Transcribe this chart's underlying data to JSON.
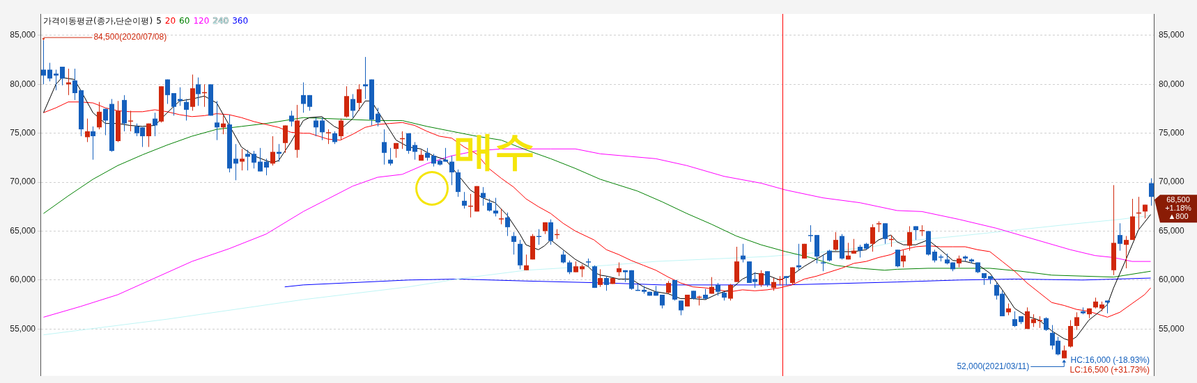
{
  "chart_data": {
    "type": "candlestick",
    "legend_title": "가격이동평균(종가,단순이평)",
    "grid": "y",
    "tick_labels": "y",
    "marker": "none",
    "categories": [
      null,
      null,
      null,
      null,
      null,
      null,
      null,
      null,
      null,
      null,
      null,
      null,
      null,
      null,
      null,
      null,
      null,
      null,
      null,
      null,
      null,
      null,
      null,
      null,
      null,
      null,
      null,
      null,
      null,
      null,
      null,
      null,
      null,
      null,
      null,
      null,
      null,
      null,
      null,
      null,
      null,
      null,
      null,
      null,
      null,
      null,
      null,
      null,
      null,
      null,
      null,
      null,
      null,
      null,
      null,
      null,
      null,
      null,
      null,
      null,
      null,
      null,
      null,
      null,
      null,
      null,
      null,
      null,
      null,
      null,
      null,
      null,
      null,
      null,
      null,
      null,
      null,
      null,
      null,
      null,
      null,
      null,
      null,
      null,
      null,
      null,
      null,
      null,
      null,
      null,
      null,
      null,
      null,
      null,
      null,
      null,
      null,
      null,
      null,
      null,
      null,
      null,
      null,
      null,
      null,
      null,
      null,
      null,
      null,
      null,
      null,
      null,
      null,
      null,
      null,
      null,
      null,
      null,
      null,
      null,
      null,
      null,
      null,
      null,
      null,
      null,
      null,
      null,
      null,
      null,
      null,
      null,
      null,
      null,
      null,
      null,
      null,
      null,
      null,
      null,
      null,
      null,
      null,
      null,
      null,
      null,
      null,
      null,
      null,
      null,
      null,
      null,
      null,
      null,
      null,
      null,
      null,
      null,
      null,
      null,
      null,
      null,
      null,
      null,
      null,
      null,
      null,
      null,
      null,
      null,
      null,
      null,
      null,
      null,
      null,
      null,
      null,
      null,
      null,
      null
    ],
    "ylim": [
      50200,
      87200
    ],
    "yticks": [
      {
        "value": 55000,
        "label": "55,000"
      },
      {
        "value": 60000,
        "label": "60,000"
      },
      {
        "value": 65000,
        "label": "65,000"
      },
      {
        "value": 70000,
        "label": "70,000"
      },
      {
        "value": 75000,
        "label": "75,000"
      },
      {
        "value": 80000,
        "label": "80,000"
      },
      {
        "value": 85000,
        "label": "85,000"
      }
    ],
    "y2lim": [
      50200,
      87200
    ],
    "y2ticks": [
      {
        "value": 55000,
        "label": "55,000"
      },
      {
        "value": 60000,
        "label": "60,000"
      },
      {
        "value": 65000,
        "label": "65,000"
      },
      {
        "value": 70000,
        "label": "70,000"
      },
      {
        "value": 75000,
        "label": "75,000"
      },
      {
        "value": 80000,
        "label": "80,000"
      },
      {
        "value": 85000,
        "label": "85,000"
      }
    ],
    "annotations": [
      "84,500(2020/07/08)",
      "52,000(2021/03/11)",
      "HC:16,000 (-18.93%)",
      "LC:16,500 (+31.73%)",
      "68,500",
      "+1.18%",
      "▲800",
      "매수"
    ],
    "colors": [
      "#1560bd",
      "#1560bd",
      "#1560bd",
      "#1560bd",
      "#d0280c",
      "#1560bd",
      "#1560bd",
      "#d0280c",
      "#1560bd",
      "#d0280c",
      "#1560bd",
      "#1560bd",
      "#d0280c",
      "#1560bd",
      "#d0280c",
      "#1560bd",
      "#1560bd",
      "#d0280c",
      "#1560bd",
      "#d0280c",
      "#1560bd",
      "#1560bd",
      "#1560bd",
      "#1560bd",
      "#d0280c",
      "#1560bd",
      "#d0280c",
      "#1560bd",
      "#1560bd",
      "#d0280c",
      "#1560bd",
      "#1560bd",
      "#d0280c",
      "#1560bd",
      "#1560bd",
      "#1560bd",
      "#1560bd",
      "#d0280c",
      "#1560bd",
      "#d0280c",
      "#1560bd",
      "#d0280c",
      "#1560bd",
      "#1560bd",
      "#1560bd",
      "#1560bd",
      "#d0280c",
      "#1560bd",
      "#d0280c",
      "#d0280c",
      "#1560bd",
      "#d0280c",
      "#1560bd",
      "#1560bd",
      "#1560bd",
      "#1560bd",
      "#1560bd",
      "#d0280c",
      "#d0280c",
      "#1560bd",
      "#1560bd",
      "#d0280c",
      "#1560bd",
      "#1560bd",
      "#1560bd",
      "#1560bd",
      "#1560bd",
      "#1560bd",
      "#1560bd",
      "#d0280c",
      "#d0280c",
      "#1560bd",
      "#1560bd",
      "#1560bd",
      "#d0280c",
      "#1560bd",
      "#1560bd",
      "#1560bd",
      "#d0280c",
      "#d0280c",
      "#1560bd",
      "#d0280c",
      "#1560bd",
      "#d0280c",
      "#1560bd",
      "#1560bd",
      "#d0280c",
      "#d0280c",
      "#1560bd",
      "#1560bd",
      "#d0280c",
      "#1560bd",
      "#d0280c",
      "#d0280c",
      "#1560bd",
      "#1560bd",
      "#1560bd",
      "#1560bd",
      "#1560bd",
      "#1560bd",
      "#1560bd",
      "#d0280c",
      "#1560bd",
      "#1560bd",
      "#d0280c",
      "#1560bd",
      "#d0280c",
      "#1560bd",
      "#d0280c",
      "#1560bd",
      "#1560bd",
      "#d0280c",
      "#d0280c",
      "#1560bd",
      "#1560bd",
      "#1560bd",
      "#d0280c",
      "#1560bd",
      "#d0280c",
      "#d0280c",
      "#1560bd",
      "#d0280c",
      "#1560bd",
      "#d0280c",
      "#1560bd",
      "#1560bd",
      "#1560bd",
      "#1560bd",
      "#d0280c",
      "#1560bd",
      "#d0280c",
      "#d0280c",
      "#1560bd",
      "#1560bd",
      "#d0280c",
      "#d0280c",
      "#1560bd",
      "#d0280c",
      "#1560bd",
      "#d0280c",
      "#d0280c",
      "#1560bd",
      "#d0280c",
      "#1560bd",
      "#1560bd",
      "#1560bd",
      "#1560bd",
      "#1560bd",
      "#d0280c",
      "#1560bd",
      "#1560bd",
      "#1560bd",
      "#1560bd",
      "#1560bd",
      "#1560bd",
      "#1560bd",
      "#d0280c",
      "#1560bd",
      "#1560bd",
      "#d0280c",
      "#d0280c",
      "#d0280c",
      "#1560bd",
      "#1560bd",
      "#1560bd",
      "#d0280c",
      "#d0280c",
      "#d0280c",
      "#1560bd",
      "#d0280c",
      "#d0280c",
      "#d0280c",
      "#1560bd",
      "#d0280c",
      "#1560bd",
      "#d0280c",
      "#d0280c",
      "#d0280c",
      "#d0280c",
      "#1560bd"
    ],
    "ohlc": [
      [
        81500,
        84500,
        80000,
        80900
      ],
      [
        81500,
        82200,
        80300,
        80600
      ],
      [
        81100,
        81500,
        79400,
        80900
      ],
      [
        81800,
        81800,
        79900,
        80600
      ],
      [
        80000,
        81600,
        78900,
        80200
      ],
      [
        80400,
        81600,
        78400,
        79100
      ],
      [
        79400,
        79400,
        74700,
        75400
      ],
      [
        74600,
        76500,
        74100,
        75200
      ],
      [
        75200,
        75700,
        72300,
        74700
      ],
      [
        75600,
        78200,
        75400,
        77200
      ],
      [
        77500,
        77500,
        74800,
        76300
      ],
      [
        78000,
        78500,
        73100,
        73200
      ],
      [
        74200,
        78300,
        74100,
        77300
      ],
      [
        78400,
        78900,
        75200,
        76000
      ],
      [
        76200,
        77300,
        75200,
        76300
      ],
      [
        75700,
        76000,
        74700,
        75000
      ],
      [
        75600,
        75600,
        73600,
        74700
      ],
      [
        74700,
        76000,
        73600,
        76000
      ],
      [
        76500,
        77100,
        74700,
        75800
      ],
      [
        76200,
        79800,
        76100,
        79800
      ],
      [
        80500,
        80500,
        78000,
        78900
      ],
      [
        79100,
        79100,
        76800,
        77700
      ],
      [
        78500,
        79700,
        77800,
        78300
      ],
      [
        78200,
        78500,
        76300,
        77400
      ],
      [
        77700,
        81000,
        77300,
        79600
      ],
      [
        80000,
        80700,
        77800,
        79000
      ],
      [
        79100,
        80000,
        77700,
        79200
      ],
      [
        80000,
        80000,
        76800,
        76800
      ],
      [
        76100,
        78300,
        74300,
        75600
      ],
      [
        75600,
        76800,
        74900,
        76000
      ],
      [
        75900,
        76900,
        71000,
        71400
      ],
      [
        72400,
        73900,
        70200,
        71900
      ],
      [
        72100,
        73400,
        71200,
        72400
      ],
      [
        72900,
        73300,
        71200,
        72600
      ],
      [
        72900,
        73200,
        71400,
        72000
      ],
      [
        72100,
        73500,
        71100,
        71100
      ],
      [
        72100,
        72400,
        70700,
        71500
      ],
      [
        71900,
        74700,
        71700,
        73100
      ],
      [
        73100,
        73900,
        72100,
        72900
      ],
      [
        74000,
        75800,
        73000,
        75800
      ],
      [
        76800,
        77300,
        75700,
        76200
      ],
      [
        73300,
        77900,
        72500,
        76300
      ],
      [
        78900,
        80200,
        77100,
        78000
      ],
      [
        78900,
        78900,
        77300,
        77700
      ],
      [
        76300,
        76600,
        74700,
        75600
      ],
      [
        76300,
        76600,
        74300,
        75100
      ],
      [
        75000,
        75400,
        73900,
        75100
      ],
      [
        75000,
        75200,
        73900,
        74100
      ],
      [
        74700,
        76500,
        74300,
        76300
      ],
      [
        76700,
        79800,
        76600,
        78800
      ],
      [
        78500,
        79000,
        76600,
        77300
      ],
      [
        78100,
        80000,
        77300,
        79500
      ],
      [
        80000,
        82800,
        78500,
        79800
      ],
      [
        80500,
        80500,
        75800,
        76400
      ],
      [
        77000,
        77600,
        75700,
        76100
      ],
      [
        74100,
        75400,
        71800,
        73000
      ],
      [
        72300,
        73500,
        71700,
        71900
      ],
      [
        73400,
        74000,
        72500,
        74000
      ],
      [
        74400,
        75200,
        73400,
        74500
      ],
      [
        75000,
        75000,
        72900,
        73200
      ],
      [
        73800,
        74100,
        72300,
        73100
      ],
      [
        72200,
        73300,
        72200,
        72800
      ],
      [
        73000,
        73500,
        72200,
        72500
      ],
      [
        72700,
        72900,
        71600,
        71900
      ],
      [
        72200,
        72300,
        71700,
        71800
      ],
      [
        72300,
        73500,
        72100,
        72100
      ],
      [
        72100,
        72700,
        69700,
        71000
      ],
      [
        71000,
        71300,
        68500,
        69000
      ],
      [
        68100,
        69000,
        67300,
        67600
      ],
      [
        67500,
        68800,
        66400,
        67600
      ],
      [
        67000,
        69600,
        67000,
        69600
      ],
      [
        68900,
        69500,
        67600,
        68400
      ],
      [
        67900,
        68300,
        67000,
        67100
      ],
      [
        67100,
        68400,
        66500,
        66800
      ],
      [
        66200,
        67300,
        65700,
        66300
      ],
      [
        66400,
        66900,
        64500,
        65400
      ],
      [
        64500,
        64900,
        62600,
        63900
      ],
      [
        63700,
        64100,
        61100,
        61500
      ],
      [
        61000,
        62600,
        61000,
        61500
      ],
      [
        62100,
        64700,
        62100,
        64500
      ],
      [
        64500,
        65200,
        63600,
        64400
      ],
      [
        65000,
        65900,
        64700,
        65900
      ],
      [
        65900,
        66200,
        63600,
        64000
      ],
      [
        64600,
        65200,
        64200,
        64700
      ],
      [
        62600,
        63000,
        61700,
        61800
      ],
      [
        61800,
        62000,
        60600,
        60800
      ],
      [
        60800,
        61900,
        60800,
        61400
      ],
      [
        61100,
        61600,
        60300,
        61400
      ],
      [
        61900,
        62200,
        61400,
        61800
      ],
      [
        61400,
        61500,
        59200,
        59200
      ],
      [
        59500,
        61100,
        59300,
        60200
      ],
      [
        60200,
        60400,
        58900,
        59500
      ],
      [
        59600,
        60200,
        59600,
        60200
      ],
      [
        60800,
        61800,
        60400,
        61200
      ],
      [
        61000,
        61000,
        59800,
        60800
      ],
      [
        61000,
        61000,
        59000,
        59100
      ],
      [
        59000,
        59600,
        58900,
        58900
      ],
      [
        59000,
        59400,
        58600,
        58800
      ],
      [
        58800,
        58800,
        58400,
        58400
      ],
      [
        58800,
        59400,
        58400,
        58400
      ],
      [
        58500,
        58500,
        57100,
        57400
      ],
      [
        58700,
        59900,
        58600,
        59700
      ],
      [
        60000,
        60000,
        57900,
        58000
      ],
      [
        57900,
        57900,
        56400,
        56900
      ],
      [
        57300,
        58500,
        57300,
        58500
      ],
      [
        58900,
        58900,
        58000,
        58100
      ],
      [
        58200,
        58400,
        57400,
        58300
      ],
      [
        58500,
        59100,
        58000,
        58100
      ],
      [
        58600,
        60300,
        58600,
        59300
      ],
      [
        59500,
        59700,
        58400,
        58800
      ],
      [
        58700,
        58800,
        57900,
        58200
      ],
      [
        58100,
        59600,
        57900,
        59500
      ],
      [
        59800,
        63400,
        59800,
        61900
      ],
      [
        62500,
        63700,
        61800,
        62100
      ],
      [
        61900,
        61900,
        59700,
        59700
      ],
      [
        60100,
        60800,
        59200,
        59800
      ],
      [
        59500,
        61000,
        59300,
        60700
      ],
      [
        60900,
        60900,
        59300,
        59500
      ],
      [
        59200,
        60200,
        58900,
        59800
      ],
      [
        60000,
        60400,
        59500,
        60100
      ],
      [
        60400,
        60400,
        59500,
        60200
      ],
      [
        59700,
        61300,
        59500,
        61300
      ],
      [
        61500,
        63700,
        61000,
        61300
      ],
      [
        62200,
        63700,
        62200,
        63700
      ],
      [
        64600,
        65600,
        63900,
        64500
      ],
      [
        64600,
        64600,
        61700,
        62400
      ],
      [
        61800,
        62600,
        60900,
        61700
      ],
      [
        63000,
        63100,
        61900,
        62000
      ],
      [
        63100,
        64900,
        63000,
        64100
      ],
      [
        64500,
        64700,
        62100,
        62200
      ],
      [
        62100,
        63800,
        62100,
        62500
      ],
      [
        62700,
        64200,
        62700,
        63000
      ],
      [
        63400,
        63600,
        62300,
        63000
      ],
      [
        63700,
        63800,
        63100,
        63200
      ],
      [
        63700,
        65700,
        62900,
        65400
      ],
      [
        65700,
        66000,
        64900,
        65800
      ],
      [
        65800,
        65800,
        63700,
        64200
      ],
      [
        64100,
        64600,
        63400,
        64200
      ],
      [
        63100,
        63100,
        61300,
        61400
      ],
      [
        61900,
        63100,
        61300,
        62500
      ],
      [
        63500,
        65500,
        63000,
        64900
      ],
      [
        65500,
        65500,
        64100,
        65100
      ],
      [
        65000,
        65600,
        64500,
        65100
      ],
      [
        65000,
        65000,
        62500,
        62600
      ],
      [
        62900,
        63100,
        61800,
        62000
      ],
      [
        62400,
        62600,
        61900,
        62300
      ],
      [
        62100,
        62700,
        61600,
        61700
      ],
      [
        61800,
        61800,
        60900,
        61100
      ],
      [
        61700,
        62500,
        61300,
        62200
      ],
      [
        62400,
        62500,
        61900,
        62200
      ],
      [
        62100,
        62200,
        61700,
        61900
      ],
      [
        61800,
        61800,
        60700,
        60800
      ],
      [
        60700,
        60700,
        59500,
        60200
      ],
      [
        60400,
        60400,
        59600,
        60100
      ],
      [
        59500,
        59700,
        58000,
        58400
      ],
      [
        58600,
        58900,
        56300,
        56300
      ],
      [
        56700,
        57600,
        56400,
        57100
      ],
      [
        56000,
        56800,
        55200,
        55300
      ],
      [
        56300,
        56300,
        55500,
        55700
      ],
      [
        55000,
        57200,
        55000,
        56800
      ],
      [
        55600,
        56500,
        55200,
        56000
      ],
      [
        55800,
        56300,
        55100,
        55900
      ],
      [
        56100,
        56200,
        54800,
        54900
      ],
      [
        54600,
        55400,
        52900,
        53300
      ],
      [
        53800,
        54200,
        52300,
        52400
      ],
      [
        52000,
        53300,
        52000,
        52800
      ],
      [
        53200,
        55900,
        53100,
        55300
      ],
      [
        55300,
        56700,
        54900,
        56200
      ],
      [
        56800,
        57200,
        56500,
        56600
      ],
      [
        56500,
        57100,
        56100,
        57100
      ],
      [
        57200,
        58200,
        57100,
        57800
      ],
      [
        57100,
        57800,
        56800,
        57500
      ],
      [
        57900,
        57900,
        56600,
        57700
      ],
      [
        61000,
        69700,
        60500,
        63800
      ],
      [
        64600,
        65800,
        63000,
        63700
      ],
      [
        63600,
        64500,
        61200,
        64100
      ],
      [
        64100,
        68300,
        64100,
        66500
      ],
      [
        66800,
        68500,
        65200,
        66900
      ],
      [
        67000,
        67700,
        66300,
        67700
      ],
      [
        69900,
        70400,
        67600,
        68500
      ]
    ],
    "series": [
      {
        "type": "line",
        "name": "5",
        "color": "#000000",
        "values": [
          77100,
          null,
          80000,
          80700,
          null,
          80500,
          79400,
          null,
          77100,
          null,
          76000,
          null,
          76000,
          null,
          75800,
          null,
          75700,
          null,
          75800,
          null,
          77100,
          null,
          78300,
          null,
          78500,
          null,
          78800,
          null,
          78100,
          null,
          null,
          null,
          73600,
          null,
          72700,
          null,
          72200,
          72000,
          72200,
          null,
          74100,
          null,
          76300,
          76600,
          null,
          76700,
          null,
          75700,
          75400,
          null,
          76500,
          null,
          78300,
          78300,
          null,
          76300,
          null,
          74300,
          null,
          73600,
          null,
          73400,
          null,
          72700,
          null,
          72300,
          null,
          null,
          null,
          69200,
          null,
          68400,
          null,
          67900,
          null,
          66600,
          null,
          64700,
          63600,
          null,
          63100,
          63500,
          64100,
          null,
          63100,
          null,
          62100,
          null,
          61400,
          60800,
          60500,
          60400,
          null,
          60100,
          null,
          60100,
          null,
          59300,
          null,
          58800,
          null,
          58600,
          null,
          58100,
          null,
          58100,
          null,
          58000,
          null,
          58600,
          null,
          59000,
          null,
          60100,
          null,
          60700,
          null,
          60500,
          null,
          60000,
          null,
          60500,
          null,
          61400,
          null,
          null,
          null,
          62900,
          null,
          62900,
          null,
          62900,
          null,
          63100,
          null,
          64100,
          null,
          64600,
          63900,
          63600,
          null,
          63600,
          null,
          64100,
          null,
          63100,
          null,
          62000,
          null,
          61900,
          null,
          61600,
          null,
          60700,
          null,
          59000,
          null,
          57100,
          null,
          56300,
          null,
          55900,
          null,
          54800,
          null,
          54000,
          53800,
          54200,
          null,
          55900,
          null,
          56900,
          57500,
          59200,
          null,
          62100,
          null,
          65100,
          null,
          66700
        ]
      },
      {
        "type": "line",
        "name": "20",
        "color": "#ff0000",
        "values": [
          77100,
          null,
          77600,
          null,
          78200,
          null,
          78200,
          null,
          78100,
          null,
          77600,
          null,
          77300,
          null,
          77200,
          null,
          77200,
          null,
          77400,
          null,
          77200,
          null,
          76900,
          null,
          76700,
          null,
          76800,
          null,
          77000,
          null,
          76900,
          null,
          76600,
          null,
          76200,
          null,
          75900,
          null,
          75600,
          null,
          75100,
          null,
          75000,
          75000,
          null,
          null,
          74400,
          null,
          74300,
          null,
          74900,
          null,
          75600,
          null,
          75900,
          null,
          76000,
          null,
          76100,
          null,
          75800,
          null,
          75200,
          null,
          74700,
          null,
          74500,
          null,
          73600,
          null,
          72900,
          null,
          71400,
          null,
          70400,
          null,
          69500,
          null,
          68300,
          null,
          67500,
          null,
          66800,
          null,
          65800,
          null,
          65000,
          null,
          null,
          64100,
          null,
          63100,
          null,
          62600,
          null,
          62000,
          null,
          61500,
          null,
          61000,
          null,
          60300,
          null,
          59700,
          null,
          59300,
          null,
          59200,
          null,
          59000,
          null,
          58800,
          null,
          59000,
          null,
          58900,
          null,
          59000,
          null,
          59200,
          null,
          59500,
          null,
          60100,
          null,
          60400,
          null,
          60800,
          null,
          61200,
          null,
          61700,
          null,
          61900,
          null,
          62300,
          null,
          62600,
          62900,
          63100,
          null,
          63400,
          null,
          63500,
          null,
          63400,
          null,
          63400,
          null,
          63400,
          null,
          63100,
          null,
          62900,
          null,
          61900,
          null,
          60900,
          null,
          59700,
          null,
          58700,
          null,
          57700,
          null,
          57400,
          null,
          57000,
          null,
          56800,
          null,
          56400,
          56200,
          null,
          56700,
          null,
          57600,
          null,
          58500,
          59200
        ]
      },
      {
        "type": "line",
        "name": "60",
        "color": "#008000",
        "values": [
          66800,
          null,
          null,
          null,
          68600,
          null,
          null,
          null,
          70300,
          null,
          null,
          null,
          71700,
          null,
          null,
          null,
          72800,
          null,
          null,
          null,
          73800,
          null,
          null,
          null,
          74700,
          null,
          null,
          null,
          75400,
          null,
          null,
          null,
          75700,
          null,
          null,
          null,
          76000,
          null,
          null,
          null,
          76400,
          null,
          76600,
          null,
          null,
          null,
          76500,
          null,
          null,
          null,
          76400,
          null,
          null,
          null,
          76300,
          null,
          null,
          null,
          76300,
          null,
          null,
          null,
          75700,
          null,
          null,
          null,
          75200,
          null,
          null,
          null,
          74700,
          null,
          null,
          null,
          74300,
          null,
          null,
          null,
          73300,
          null,
          null,
          null,
          72400,
          null,
          null,
          null,
          71400,
          null,
          null,
          null,
          70300,
          null,
          69900,
          null,
          null,
          null,
          69100,
          null,
          null,
          null,
          68000,
          null,
          null,
          null,
          66800,
          null,
          null,
          null,
          65700,
          null,
          null,
          null,
          64500,
          null,
          null,
          null,
          63600,
          null,
          null,
          null,
          62900,
          null,
          null,
          null,
          62300,
          null,
          null,
          null,
          61500,
          null,
          null,
          null,
          61200,
          null,
          null,
          null,
          61000,
          null,
          61100,
          null,
          null,
          null,
          null,
          61200,
          null,
          null,
          null,
          null,
          61200,
          null,
          null,
          null,
          null,
          61200,
          null,
          null,
          null,
          null,
          60900,
          null,
          null,
          null,
          null,
          60500,
          null,
          null,
          null,
          null,
          60400,
          null,
          null,
          null,
          null,
          60300,
          null,
          null,
          60600,
          null,
          null,
          60900
        ]
      },
      {
        "type": "line",
        "name": "120",
        "color": "#ff00ff",
        "values": [
          56200,
          null,
          null,
          null,
          null,
          null,
          57300,
          null,
          null,
          null,
          null,
          null,
          58500,
          null,
          null,
          null,
          null,
          null,
          60200,
          null,
          null,
          null,
          null,
          null,
          61900,
          null,
          null,
          null,
          null,
          null,
          63200,
          null,
          null,
          null,
          null,
          null,
          64700,
          null,
          null,
          null,
          null,
          null,
          67000,
          null,
          null,
          null,
          68300,
          null,
          null,
          null,
          69600,
          null,
          null,
          null,
          70500,
          null,
          null,
          null,
          70800,
          null,
          null,
          null,
          71900,
          null,
          null,
          null,
          72700,
          null,
          null,
          null,
          73200,
          null,
          null,
          null,
          73400,
          null,
          null,
          null,
          73400,
          null,
          null,
          null,
          73400,
          null,
          null,
          null,
          73400,
          null,
          null,
          null,
          72900,
          null,
          null,
          null,
          null,
          null,
          null,
          null,
          null,
          72400,
          null,
          null,
          null,
          null,
          71700,
          null,
          null,
          null,
          null,
          null,
          70600,
          null,
          null,
          null,
          null,
          null,
          69900,
          null,
          null,
          null,
          69200,
          null,
          null,
          null,
          null,
          null,
          68400,
          null,
          null,
          null,
          null,
          null,
          67900,
          null,
          null,
          null,
          null,
          null,
          67100,
          null,
          null,
          null,
          67000,
          null,
          null,
          null,
          null,
          null,
          66200,
          null,
          null,
          null,
          null,
          null,
          65300,
          null,
          null,
          null,
          null,
          null,
          64200,
          null,
          null,
          null,
          null,
          null,
          63100,
          null,
          null,
          null,
          62500,
          null,
          null,
          62300,
          null,
          null,
          61900,
          null,
          null,
          61900
        ]
      },
      {
        "type": "line",
        "name": "240",
        "color": "#bff5f5",
        "values": [
          54400,
          null,
          null,
          null,
          null,
          null,
          null,
          null,
          null,
          null,
          null,
          null,
          null,
          null,
          null,
          null,
          null,
          null,
          null,
          null,
          56000,
          null,
          null,
          null,
          null,
          null,
          null,
          null,
          null,
          null,
          null,
          null,
          null,
          null,
          null,
          null,
          null,
          null,
          null,
          null,
          null,
          null,
          58000,
          null,
          null,
          null,
          null,
          null,
          null,
          null,
          null,
          null,
          null,
          null,
          null,
          null,
          null,
          null,
          null,
          59300,
          null,
          null,
          null,
          null,
          null,
          null,
          null,
          null,
          60200,
          null,
          null,
          null,
          null,
          null,
          null,
          null,
          null,
          null,
          61000,
          null,
          null,
          null,
          null,
          null,
          null,
          null,
          null,
          null,
          null,
          null,
          null,
          61500,
          null,
          null,
          null,
          null,
          null,
          null,
          null,
          61900,
          null,
          null,
          null,
          null,
          null,
          null,
          null,
          null,
          null,
          null,
          null,
          null,
          null,
          null,
          null,
          null,
          null,
          62400,
          null,
          null,
          null,
          null,
          null,
          null,
          null,
          62800,
          null,
          null,
          null,
          null,
          null,
          null,
          null,
          null,
          63400,
          null,
          null,
          null,
          63900,
          null,
          null,
          null,
          null,
          null,
          null,
          null,
          null,
          null,
          64500,
          null,
          null,
          null,
          null,
          null,
          null,
          null,
          null,
          65100,
          null,
          null,
          null,
          null,
          null,
          null,
          null,
          null,
          65700,
          null,
          null,
          null,
          null,
          null,
          null,
          null,
          66200,
          null,
          null,
          null,
          null,
          66600
        ]
      },
      {
        "type": "line",
        "name": "360",
        "color": "#0000ff",
        "values": [
          null,
          null,
          null,
          null,
          null,
          null,
          null,
          null,
          null,
          null,
          null,
          null,
          null,
          null,
          null,
          null,
          null,
          null,
          null,
          null,
          null,
          null,
          null,
          null,
          null,
          null,
          null,
          null,
          null,
          null,
          null,
          null,
          null,
          null,
          null,
          null,
          null,
          null,
          null,
          59300,
          null,
          null,
          59500,
          null,
          null,
          null,
          null,
          null,
          null,
          null,
          null,
          null,
          null,
          null,
          null,
          null,
          null,
          null,
          null,
          60000,
          null,
          null,
          null,
          null,
          null,
          null,
          null,
          60100,
          null,
          null,
          null,
          null,
          null,
          null,
          null,
          null,
          null,
          null,
          59900,
          null,
          null,
          null,
          null,
          null,
          null,
          null,
          null,
          null,
          null,
          null,
          null,
          59700,
          null,
          null,
          null,
          null,
          null,
          null,
          null,
          null,
          59500,
          null,
          null,
          null,
          null,
          null,
          null,
          null,
          null,
          null,
          null,
          null,
          null,
          null,
          null,
          null,
          null,
          null,
          null,
          null,
          59500,
          null,
          null,
          null,
          null,
          null,
          null,
          null,
          null,
          null,
          null,
          null,
          null,
          null,
          null,
          null,
          null,
          null,
          59800,
          null,
          null,
          null,
          null,
          null,
          null,
          null,
          null,
          null,
          60000,
          null,
          null,
          null,
          null,
          null,
          null,
          null,
          null,
          60100,
          null,
          null,
          null,
          null,
          null,
          null,
          null,
          null,
          null,
          null,
          60000,
          null,
          null,
          null,
          null,
          null,
          null,
          null,
          null,
          null,
          null,
          60200
        ]
      }
    ]
  }
}
